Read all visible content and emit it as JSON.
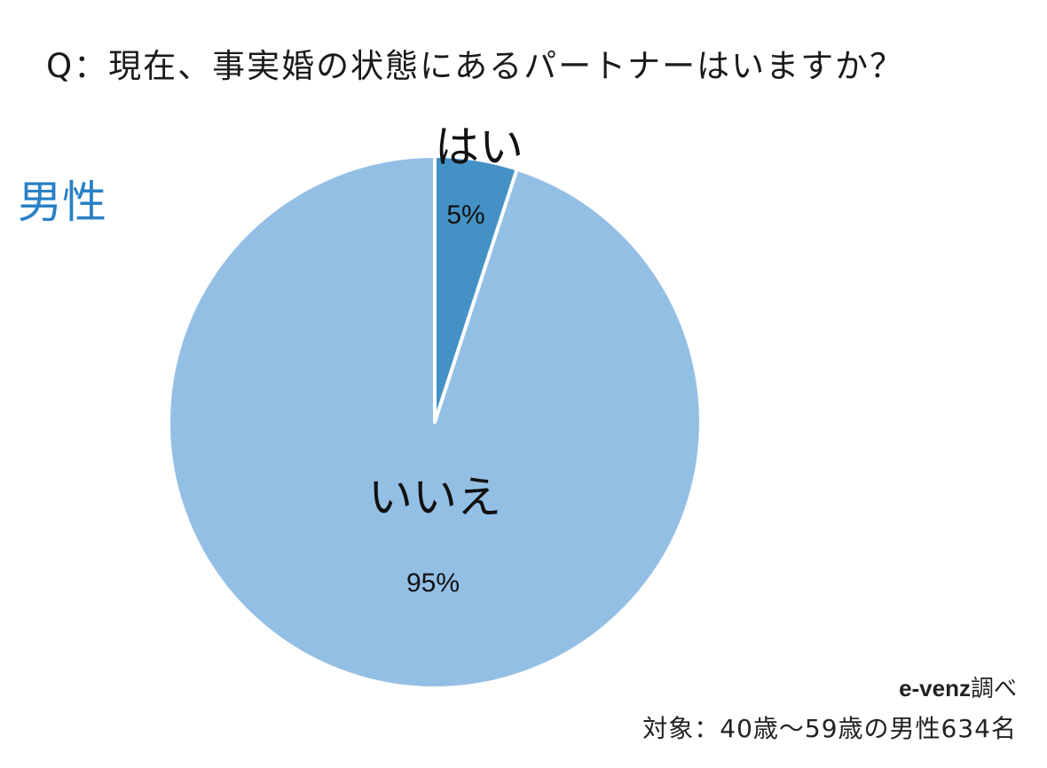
{
  "question": "Q：現在、事実婚の状態にあるパートナーはいますか？",
  "group_label": "男性",
  "source": {
    "brand": "e-venz",
    "suffix": "調べ"
  },
  "subject_note": "対象：40歳～59歳の男性634名",
  "colors": {
    "yes": "#4492c5",
    "no": "#94bfe5",
    "separator": "#ffffff",
    "group_label": "#2a80c4"
  },
  "chart_data": {
    "type": "pie",
    "categories": [
      "はい",
      "いいえ"
    ],
    "values": [
      5,
      95
    ],
    "value_labels": [
      "5%",
      "95%"
    ],
    "start_angle": "12 o'clock",
    "direction": "clockwise"
  }
}
